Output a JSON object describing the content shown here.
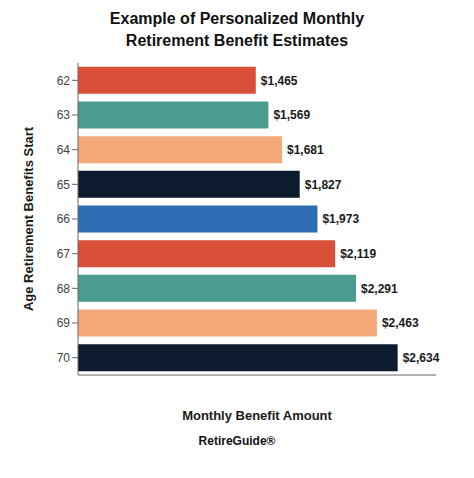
{
  "chart_data": {
    "type": "bar",
    "orientation": "horizontal",
    "title": "Example of Personalized Monthly\nRetirement Benefit Estimates",
    "xlabel": "Monthly Benefit Amount",
    "ylabel": "Age Retirement Benefits Start",
    "categories": [
      "62",
      "63",
      "64",
      "65",
      "66",
      "67",
      "68",
      "69",
      "70"
    ],
    "values": [
      1465,
      1569,
      1681,
      1827,
      1973,
      2119,
      2291,
      2463,
      2634
    ],
    "value_labels": [
      "$1,465",
      "$1,569",
      "$1,681",
      "$1,827",
      "$1,973",
      "$2,119",
      "$2,291",
      "$2,463",
      "$2,634"
    ],
    "data_labels": true,
    "colors": [
      "#d94f38",
      "#4a9d8e",
      "#f5a87a",
      "#0c1c2e",
      "#2e6db4",
      "#d94f38",
      "#4a9d8e",
      "#f5a87a",
      "#0c1c2e"
    ],
    "xlim": [
      0,
      2950
    ],
    "tick_labels": "y",
    "grid": false,
    "annotations": [
      "RetireGuide®"
    ]
  }
}
